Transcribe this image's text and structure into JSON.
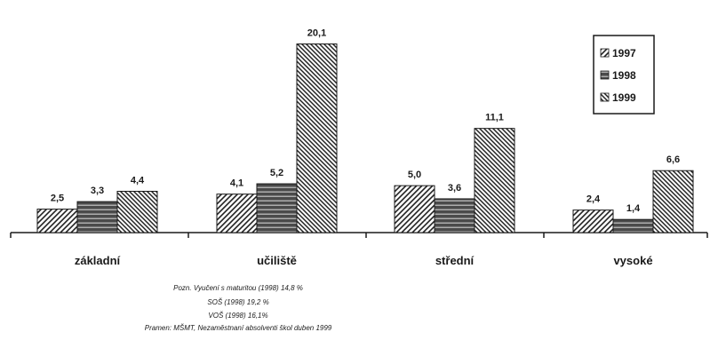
{
  "chart_data": {
    "type": "bar",
    "categories": [
      "základní",
      "učiliště",
      "střední",
      "vysoké"
    ],
    "series": [
      {
        "name": "1997",
        "values": [
          "2,5",
          "4,1",
          "5,0",
          "2,4"
        ]
      },
      {
        "name": "1998",
        "values": [
          "3,3",
          "5,2",
          "3,6",
          "1,4"
        ]
      },
      {
        "name": "1999",
        "values": [
          "4,4",
          "20,1",
          "11,1",
          "6,6"
        ]
      }
    ],
    "numeric_values": [
      [
        2.5,
        4.1,
        5.0,
        2.4
      ],
      [
        3.3,
        5.2,
        3.6,
        1.4
      ],
      [
        4.4,
        20.1,
        11.1,
        6.6
      ]
    ],
    "ylim": [
      0,
      21
    ],
    "legend_placement": "top-right",
    "grid": false,
    "notes": [
      "Pozn. Vyučení s maturitou (1998) 14,8 %",
      "SOŠ (1998) 19,2 %",
      "VOŠ (1998) 16,1%",
      "Pramen: MŠMT, Nezaměstnaní absolventi škol duben 1999"
    ],
    "colors": {
      "s1997": "#ffffff",
      "s1998": "#5c5c5c",
      "s1999": "#ffffff",
      "stroke": "#1a1a1a"
    }
  }
}
